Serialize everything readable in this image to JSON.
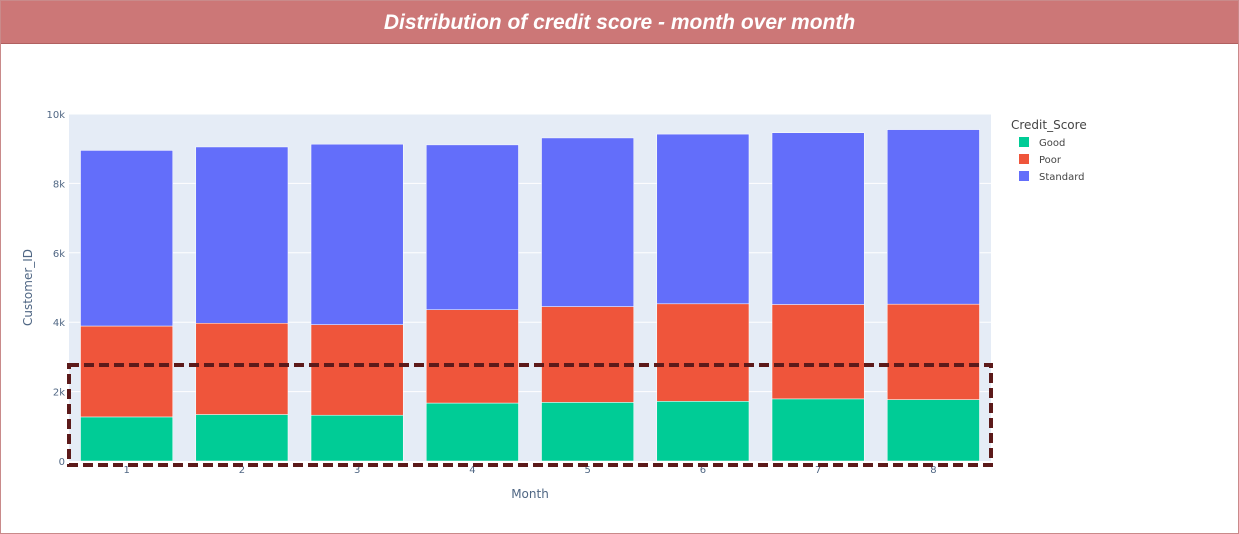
{
  "header": {
    "title": "Distribution of credit score - month over month"
  },
  "chart_data": {
    "type": "bar",
    "stacked": true,
    "xlabel": "Month",
    "ylabel": "Customer_ID",
    "categories": [
      "1",
      "2",
      "3",
      "4",
      "5",
      "6",
      "7",
      "8"
    ],
    "ylim": [
      0,
      10000
    ],
    "yticks": [
      0,
      2000,
      4000,
      6000,
      8000,
      10000
    ],
    "ytick_labels": [
      "0",
      "2k",
      "4k",
      "6k",
      "8k",
      "10k"
    ],
    "grid": true,
    "legend": {
      "title": "Credit_Score",
      "placement": "right"
    },
    "series": [
      {
        "name": "Good",
        "color": "#00cc96",
        "values": [
          1270,
          1340,
          1320,
          1670,
          1690,
          1720,
          1790,
          1770
        ]
      },
      {
        "name": "Poor",
        "color": "#ef553b",
        "values": [
          2620,
          2630,
          2610,
          2690,
          2760,
          2810,
          2720,
          2750
        ]
      },
      {
        "name": "Standard",
        "color": "#636efa",
        "values": [
          5060,
          5080,
          5200,
          4750,
          4860,
          4890,
          4950,
          5030
        ]
      }
    ],
    "annotation": {
      "type": "dashed-box",
      "color": "#5c1a1a",
      "covers": "Good series"
    }
  }
}
